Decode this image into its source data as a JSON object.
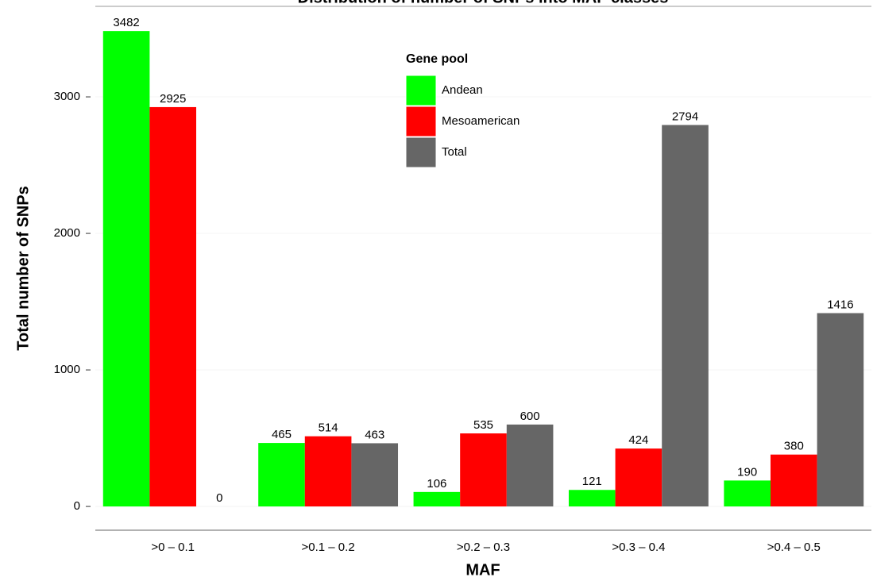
{
  "chart_data": {
    "type": "bar",
    "title": "Distribution of number of SNPs into MAF classes",
    "x_label": "MAF",
    "y_label": "Total number of SNPs",
    "legend_title": "Gene pool",
    "categories": [
      ">0 – 0.1",
      ">0.1 – 0.2",
      ">0.2 – 0.3",
      ">0.3 – 0.4",
      ">0.4 – 0.5"
    ],
    "series": [
      {
        "name": "Andean",
        "color": "#00ff00",
        "values": [
          3482,
          465,
          106,
          121,
          190
        ]
      },
      {
        "name": "Mesoamerican",
        "color": "#ff0000",
        "values": [
          2925,
          514,
          535,
          424,
          380
        ]
      },
      {
        "name": "Total",
        "color": "#666666",
        "values": [
          0,
          463,
          600,
          2794,
          1416
        ]
      }
    ],
    "ylim": [
      -174,
      3663
    ],
    "yticks": [
      0,
      1000,
      2000,
      3000
    ],
    "grid": true
  }
}
